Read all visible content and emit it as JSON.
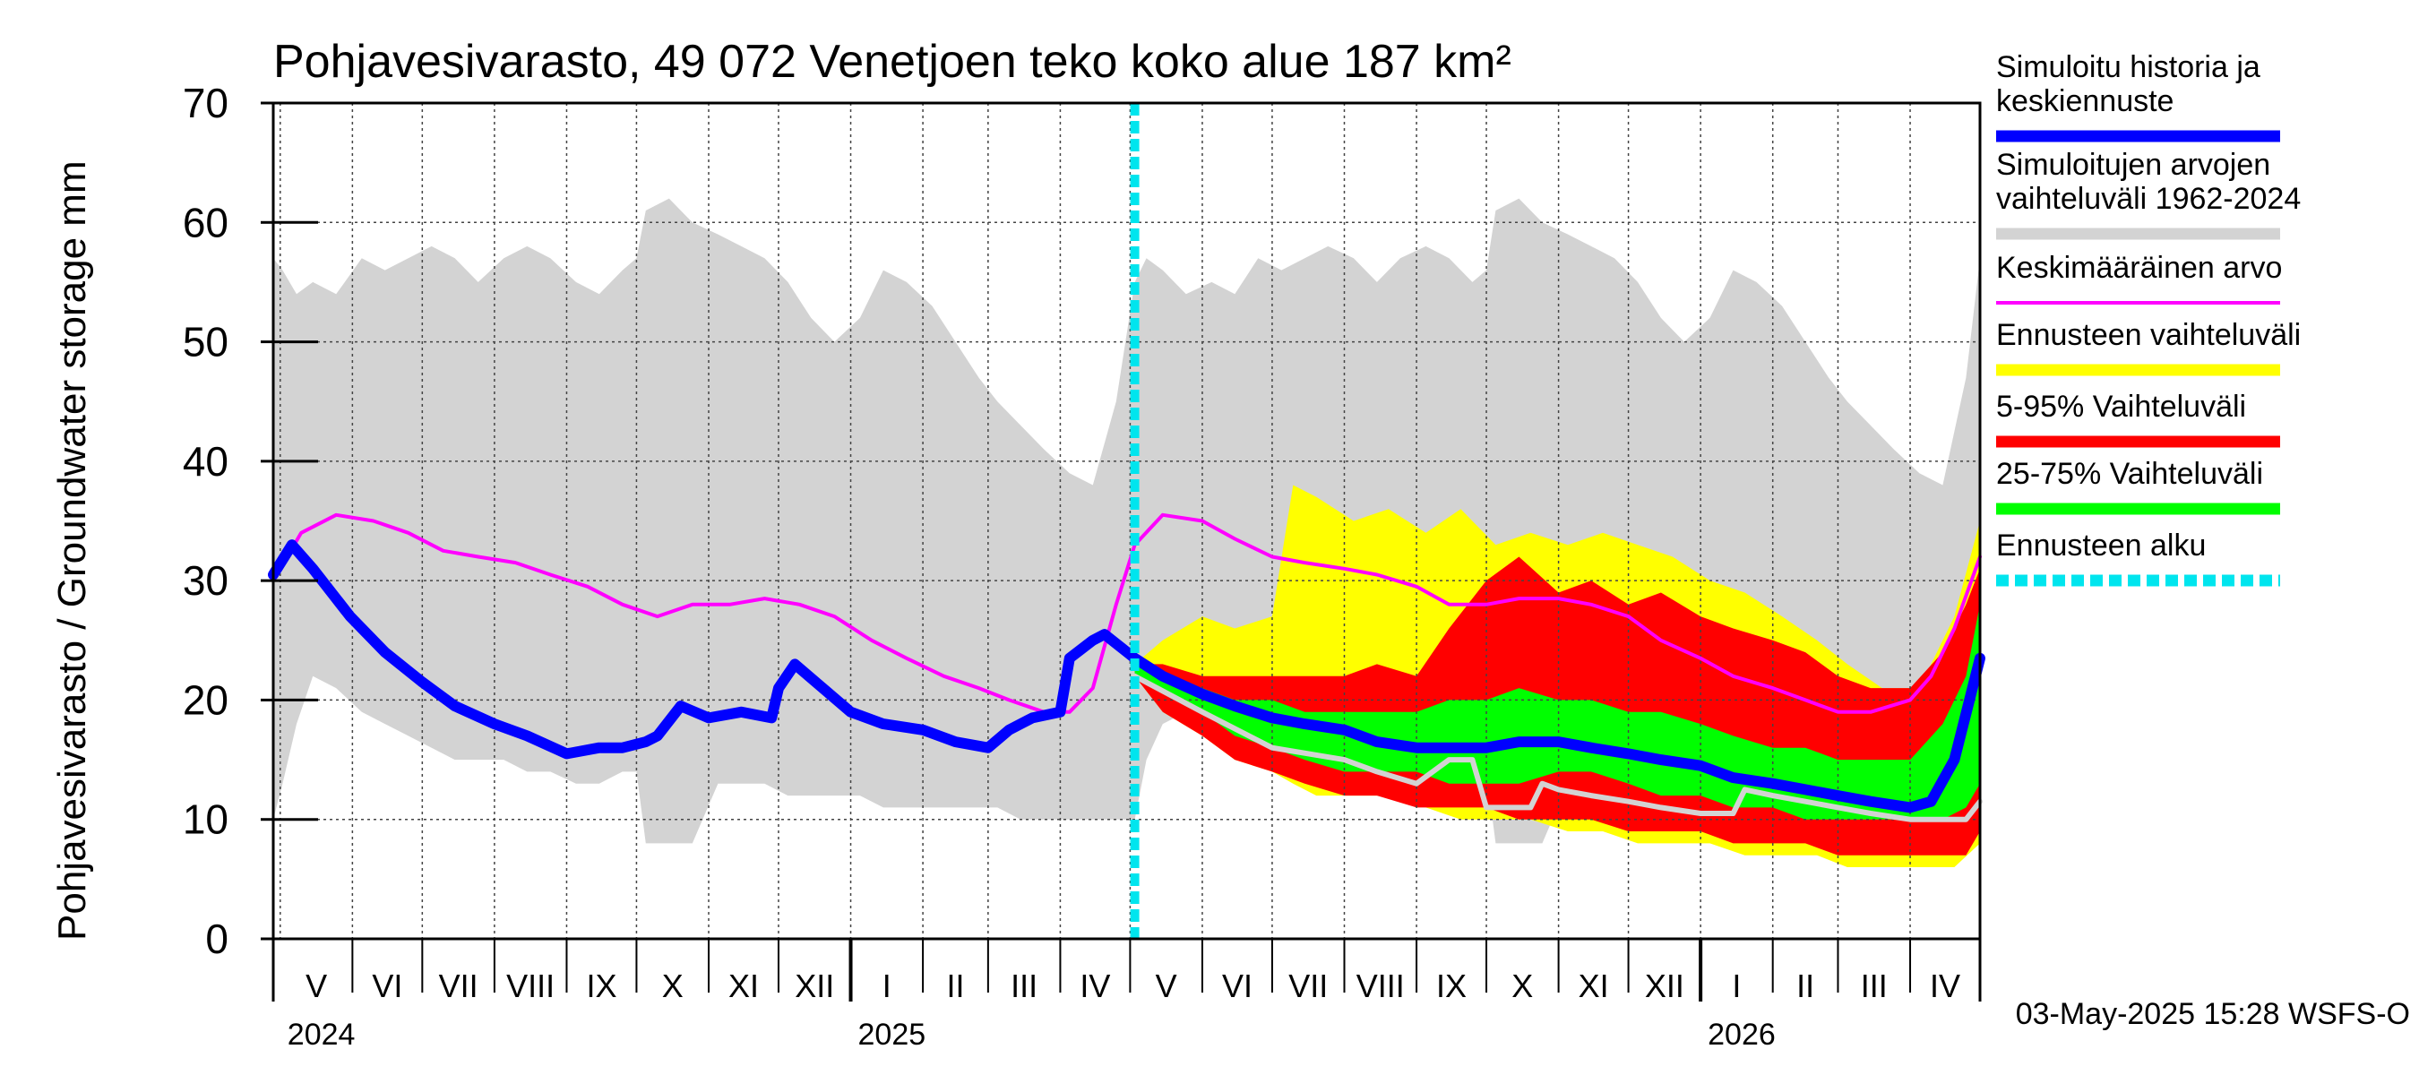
{
  "chart_data": {
    "type": "area",
    "title": "Pohjavesivarasto, 49 072 Venetjoen teko koko alue 187 km²",
    "ylabel": "Pohjavesivarasto / Groundwater storage   mm",
    "ylim": [
      0,
      70
    ],
    "yticks": [
      "0",
      "10",
      "20",
      "30",
      "40",
      "50",
      "60",
      "70"
    ],
    "xlim": [
      "2024-04-28",
      "2026-05-01"
    ],
    "grid": true,
    "legend_position": "right",
    "months": [
      {
        "label": "V",
        "start": "2024-05-01",
        "end": "2024-06-01"
      },
      {
        "label": "VI",
        "start": "2024-06-01",
        "end": "2024-07-01"
      },
      {
        "label": "VII",
        "start": "2024-07-01",
        "end": "2024-08-01"
      },
      {
        "label": "VIII",
        "start": "2024-08-01",
        "end": "2024-09-01"
      },
      {
        "label": "IX",
        "start": "2024-09-01",
        "end": "2024-10-01"
      },
      {
        "label": "X",
        "start": "2024-10-01",
        "end": "2024-11-01"
      },
      {
        "label": "XI",
        "start": "2024-11-01",
        "end": "2024-12-01"
      },
      {
        "label": "XII",
        "start": "2024-12-01",
        "end": "2025-01-01"
      },
      {
        "label": "I",
        "start": "2025-01-01",
        "end": "2025-02-01"
      },
      {
        "label": "II",
        "start": "2025-02-01",
        "end": "2025-03-01"
      },
      {
        "label": "III",
        "start": "2025-03-01",
        "end": "2025-04-01"
      },
      {
        "label": "IV",
        "start": "2025-04-01",
        "end": "2025-05-01"
      },
      {
        "label": "V",
        "start": "2025-05-01",
        "end": "2025-06-01"
      },
      {
        "label": "VI",
        "start": "2025-06-01",
        "end": "2025-07-01"
      },
      {
        "label": "VII",
        "start": "2025-07-01",
        "end": "2025-08-01"
      },
      {
        "label": "VIII",
        "start": "2025-08-01",
        "end": "2025-09-01"
      },
      {
        "label": "IX",
        "start": "2025-09-01",
        "end": "2025-10-01"
      },
      {
        "label": "X",
        "start": "2025-10-01",
        "end": "2025-11-01"
      },
      {
        "label": "XI",
        "start": "2025-11-01",
        "end": "2025-12-01"
      },
      {
        "label": "XII",
        "start": "2025-12-01",
        "end": "2026-01-01"
      },
      {
        "label": "I",
        "start": "2026-01-01",
        "end": "2026-02-01"
      },
      {
        "label": "II",
        "start": "2026-02-01",
        "end": "2026-03-01"
      },
      {
        "label": "III",
        "start": "2026-03-01",
        "end": "2026-04-01"
      },
      {
        "label": "IV",
        "start": "2026-04-01",
        "end": "2026-05-01"
      }
    ],
    "years": [
      {
        "label": "2024",
        "date": "2024-05-01"
      },
      {
        "label": "2025",
        "date": "2025-01-01"
      },
      {
        "label": "2026",
        "date": "2026-01-01"
      }
    ],
    "forecast_start": "2025-05-03",
    "series": [
      {
        "name": "Simuloitujen arvojen vaihteluväli 1962-2024",
        "kind": "band",
        "color": "#d3d3d3",
        "dates": [
          "2024-04-28",
          "2024-05-02",
          "2024-05-08",
          "2024-05-15",
          "2024-05-25",
          "2024-06-05",
          "2024-06-15",
          "2024-06-25",
          "2024-07-05",
          "2024-07-15",
          "2024-07-25",
          "2024-08-05",
          "2024-08-15",
          "2024-08-25",
          "2024-09-05",
          "2024-09-15",
          "2024-09-25",
          "2024-10-01",
          "2024-10-05",
          "2024-10-15",
          "2024-10-25",
          "2024-11-05",
          "2024-11-15",
          "2024-11-25",
          "2024-12-05",
          "2024-12-15",
          "2024-12-25",
          "2025-01-05",
          "2025-01-15",
          "2025-01-25",
          "2025-02-05",
          "2025-02-15",
          "2025-02-25",
          "2025-03-05",
          "2025-03-15",
          "2025-03-25",
          "2025-04-05",
          "2025-04-15",
          "2025-04-25",
          "2025-05-03",
          "2025-05-08",
          "2025-05-15",
          "2025-05-25",
          "2025-06-05",
          "2025-06-15",
          "2025-06-25",
          "2025-07-05",
          "2025-07-15",
          "2025-07-25",
          "2025-08-05",
          "2025-08-15",
          "2025-08-25",
          "2025-09-05",
          "2025-09-15",
          "2025-09-25",
          "2025-10-01",
          "2025-10-05",
          "2025-10-15",
          "2025-10-25",
          "2025-11-05",
          "2025-11-15",
          "2025-11-25",
          "2025-12-05",
          "2025-12-15",
          "2025-12-25",
          "2026-01-05",
          "2026-01-15",
          "2026-01-25",
          "2026-02-05",
          "2026-02-15",
          "2026-02-25",
          "2026-03-05",
          "2026-03-15",
          "2026-03-25",
          "2026-04-05",
          "2026-04-15",
          "2026-04-25",
          "2026-05-01"
        ],
        "upper": [
          57,
          56,
          54,
          55,
          54,
          57,
          56,
          57,
          58,
          57,
          55,
          57,
          58,
          57,
          55,
          54,
          56,
          57,
          61,
          62,
          60,
          59,
          58,
          57,
          55,
          52,
          50,
          52,
          56,
          55,
          53,
          50,
          47,
          45,
          43,
          41,
          39,
          38,
          45,
          55,
          57,
          56,
          54,
          55,
          54,
          57,
          56,
          57,
          58,
          57,
          55,
          57,
          58,
          57,
          55,
          56,
          61,
          62,
          60,
          59,
          58,
          57,
          55,
          52,
          50,
          52,
          56,
          55,
          53,
          50,
          47,
          45,
          43,
          41,
          39,
          38,
          47,
          57
        ],
        "lower": [
          10,
          13,
          18,
          22,
          21,
          19,
          18,
          17,
          16,
          15,
          15,
          15,
          14,
          14,
          13,
          13,
          14,
          14,
          8,
          8,
          8,
          13,
          13,
          13,
          12,
          12,
          12,
          12,
          11,
          11,
          11,
          11,
          11,
          11,
          10,
          10,
          10,
          10,
          10,
          10,
          15,
          18,
          19,
          19,
          18,
          17,
          16,
          15,
          15,
          15,
          14,
          14,
          13,
          13,
          14,
          14,
          8,
          8,
          8,
          13,
          13,
          13,
          12,
          12,
          12,
          12,
          11,
          11,
          11,
          11,
          11,
          11,
          10,
          10,
          10,
          10,
          10,
          10
        ]
      },
      {
        "name": "Ennusteen vaihteluväli",
        "kind": "band",
        "color": "#ffff00",
        "dates": [
          "2025-05-03",
          "2025-05-15",
          "2025-06-01",
          "2025-06-15",
          "2025-07-01",
          "2025-07-10",
          "2025-07-20",
          "2025-08-05",
          "2025-08-20",
          "2025-09-05",
          "2025-09-20",
          "2025-10-05",
          "2025-10-20",
          "2025-11-05",
          "2025-11-20",
          "2025-12-05",
          "2025-12-20",
          "2026-01-05",
          "2026-01-20",
          "2026-02-05",
          "2026-02-20",
          "2026-03-05",
          "2026-03-20",
          "2026-04-05",
          "2026-04-20",
          "2026-05-01"
        ],
        "upper": [
          23,
          25,
          27,
          26,
          27,
          38,
          37,
          35,
          36,
          34,
          36,
          33,
          34,
          33,
          34,
          33,
          32,
          30,
          29,
          27,
          25,
          23,
          21,
          21,
          27,
          35
        ],
        "lower": [
          22,
          19,
          17,
          15,
          14,
          13,
          12,
          12,
          12,
          11,
          10,
          10,
          10,
          9,
          9,
          8,
          8,
          8,
          7,
          7,
          7,
          6,
          6,
          6,
          6,
          8
        ]
      },
      {
        "name": "5-95% Vaihteluväli",
        "kind": "band",
        "color": "#ff0000",
        "dates": [
          "2025-05-03",
          "2025-05-15",
          "2025-06-01",
          "2025-06-15",
          "2025-07-01",
          "2025-07-15",
          "2025-08-01",
          "2025-08-15",
          "2025-09-01",
          "2025-09-15",
          "2025-10-01",
          "2025-10-15",
          "2025-11-01",
          "2025-11-15",
          "2025-12-01",
          "2025-12-15",
          "2026-01-01",
          "2026-01-15",
          "2026-02-01",
          "2026-02-15",
          "2026-03-01",
          "2026-03-15",
          "2026-04-01",
          "2026-04-15",
          "2026-04-25",
          "2026-05-01"
        ],
        "upper": [
          23,
          23,
          22,
          22,
          22,
          22,
          22,
          23,
          22,
          26,
          30,
          32,
          29,
          30,
          28,
          29,
          27,
          26,
          25,
          24,
          22,
          21,
          21,
          24,
          28,
          31
        ],
        "lower": [
          22,
          19,
          17,
          15,
          14,
          13,
          12,
          12,
          11,
          11,
          11,
          10,
          10,
          10,
          9,
          9,
          9,
          8,
          8,
          8,
          7,
          7,
          7,
          7,
          7,
          9
        ]
      },
      {
        "name": "25-75% Vaihteluväli",
        "kind": "band",
        "color": "#00ff00",
        "dates": [
          "2025-05-03",
          "2025-05-15",
          "2025-06-01",
          "2025-06-15",
          "2025-07-01",
          "2025-07-15",
          "2025-08-01",
          "2025-08-15",
          "2025-09-01",
          "2025-09-15",
          "2025-10-01",
          "2025-10-15",
          "2025-11-01",
          "2025-11-15",
          "2025-12-01",
          "2025-12-15",
          "2026-01-01",
          "2026-01-15",
          "2026-02-01",
          "2026-02-15",
          "2026-03-01",
          "2026-03-15",
          "2026-04-01",
          "2026-04-15",
          "2026-04-25",
          "2026-05-01"
        ],
        "upper": [
          23,
          22,
          21,
          20,
          20,
          19,
          19,
          19,
          19,
          20,
          20,
          21,
          20,
          20,
          19,
          19,
          18,
          17,
          16,
          16,
          15,
          15,
          15,
          18,
          22,
          28
        ],
        "lower": [
          22,
          21,
          19,
          17,
          16,
          15,
          14,
          14,
          14,
          13,
          13,
          13,
          14,
          14,
          13,
          12,
          12,
          11,
          11,
          10,
          10,
          10,
          10,
          10,
          11,
          13
        ]
      },
      {
        "name": "Keskimääräinen arvo",
        "kind": "line",
        "color": "#ff00ff",
        "dates": [
          "2024-04-28",
          "2024-05-10",
          "2024-05-25",
          "2024-06-10",
          "2024-06-25",
          "2024-07-10",
          "2024-07-25",
          "2024-08-10",
          "2024-08-25",
          "2024-09-10",
          "2024-09-25",
          "2024-10-10",
          "2024-10-25",
          "2024-11-10",
          "2024-11-25",
          "2024-12-10",
          "2024-12-25",
          "2025-01-10",
          "2025-01-25",
          "2025-02-10",
          "2025-02-25",
          "2025-03-10",
          "2025-03-25",
          "2025-04-05",
          "2025-04-15",
          "2025-04-25",
          "2025-05-03",
          "2025-05-15",
          "2025-06-01",
          "2025-06-15",
          "2025-07-01",
          "2025-07-15",
          "2025-08-01",
          "2025-08-15",
          "2025-09-01",
          "2025-09-15",
          "2025-10-01",
          "2025-10-15",
          "2025-11-01",
          "2025-11-15",
          "2025-12-01",
          "2025-12-15",
          "2026-01-01",
          "2026-01-15",
          "2026-02-01",
          "2026-02-15",
          "2026-03-01",
          "2026-03-15",
          "2026-04-01",
          "2026-04-10",
          "2026-04-20",
          "2026-05-01"
        ],
        "values": [
          30,
          34,
          35.5,
          35,
          34,
          32.5,
          32,
          31.5,
          30.5,
          29.5,
          28,
          27,
          28,
          28,
          28.5,
          28,
          27,
          25,
          23.5,
          22,
          21,
          20,
          19,
          19,
          21,
          28,
          33,
          35.5,
          35,
          33.5,
          32,
          31.5,
          31,
          30.5,
          29.5,
          28,
          28,
          28.5,
          28.5,
          28,
          27,
          25,
          23.5,
          22,
          21,
          20,
          19,
          19,
          20,
          22,
          26,
          32
        ]
      },
      {
        "name": "Simuloitu historia ja keskiennuste",
        "kind": "line",
        "color": "#0000ff",
        "dates": [
          "2024-04-28",
          "2024-05-06",
          "2024-05-15",
          "2024-05-31",
          "2024-06-15",
          "2024-07-01",
          "2024-07-15",
          "2024-08-01",
          "2024-08-15",
          "2024-09-01",
          "2024-09-15",
          "2024-09-25",
          "2024-10-05",
          "2024-10-10",
          "2024-10-20",
          "2024-11-01",
          "2024-11-15",
          "2024-11-28",
          "2024-12-01",
          "2024-12-08",
          "2024-12-20",
          "2025-01-01",
          "2025-01-15",
          "2025-02-01",
          "2025-02-15",
          "2025-03-01",
          "2025-03-10",
          "2025-03-20",
          "2025-04-01",
          "2025-04-05",
          "2025-04-15",
          "2025-04-20",
          "2025-05-03",
          "2025-05-15",
          "2025-06-01",
          "2025-06-15",
          "2025-07-01",
          "2025-07-15",
          "2025-08-01",
          "2025-08-15",
          "2025-09-01",
          "2025-09-15",
          "2025-10-01",
          "2025-10-15",
          "2025-11-01",
          "2025-11-15",
          "2025-12-01",
          "2025-12-15",
          "2026-01-01",
          "2026-01-15",
          "2026-02-01",
          "2026-02-15",
          "2026-03-01",
          "2026-03-15",
          "2026-04-01",
          "2026-04-10",
          "2026-04-20",
          "2026-05-01"
        ],
        "values": [
          30.5,
          33,
          31,
          27,
          24,
          21.5,
          19.5,
          18,
          17,
          15.5,
          16,
          16,
          16.5,
          17,
          19.5,
          18.5,
          19,
          18.5,
          21,
          23,
          21,
          19,
          18,
          17.5,
          16.5,
          16,
          17.5,
          18.5,
          19,
          23.5,
          25,
          25.5,
          23.5,
          22,
          20.5,
          19.5,
          18.5,
          18,
          17.5,
          16.5,
          16,
          16,
          16,
          16.5,
          16.5,
          16,
          15.5,
          15,
          14.5,
          13.5,
          13,
          12.5,
          12,
          11.5,
          11,
          11.5,
          15,
          23.5
        ]
      },
      {
        "name": "",
        "kind": "line",
        "color": "#d3d3d3",
        "dates": [
          "2025-05-03",
          "2025-06-01",
          "2025-07-01",
          "2025-08-01",
          "2025-08-15",
          "2025-09-01",
          "2025-09-15",
          "2025-09-25",
          "2025-10-01",
          "2025-10-10",
          "2025-10-20",
          "2025-10-25",
          "2025-11-01",
          "2025-11-15",
          "2025-12-01",
          "2025-12-15",
          "2026-01-01",
          "2026-01-15",
          "2026-01-20",
          "2026-02-01",
          "2026-02-15",
          "2026-03-01",
          "2026-03-15",
          "2026-04-01",
          "2026-04-15",
          "2026-04-25",
          "2026-05-01"
        ],
        "values": [
          22,
          19,
          16,
          15,
          14,
          13,
          15,
          15,
          11,
          11,
          11,
          13,
          12.5,
          12,
          11.5,
          11,
          10.5,
          10.5,
          12.5,
          12,
          11.5,
          11,
          10.5,
          10,
          10,
          10,
          11.5
        ]
      }
    ],
    "legend": [
      {
        "label_lines": [
          "Simuloitu historia ja",
          "keskiennuste"
        ],
        "color": "#0000ff",
        "style": "solid",
        "weight": "thick"
      },
      {
        "label_lines": [
          "Simuloitujen arvojen",
          "vaihteluväli 1962-2024"
        ],
        "color": "#d3d3d3",
        "style": "solid",
        "weight": "thick"
      },
      {
        "label_lines": [
          "Keskimääräinen arvo"
        ],
        "color": "#ff00ff",
        "style": "solid",
        "weight": "thin"
      },
      {
        "label_lines": [
          "Ennusteen vaihteluväli"
        ],
        "color": "#ffff00",
        "style": "solid",
        "weight": "thick"
      },
      {
        "label_lines": [
          "5-95% Vaihteluväli"
        ],
        "color": "#ff0000",
        "style": "solid",
        "weight": "thick"
      },
      {
        "label_lines": [
          "25-75% Vaihteluväli"
        ],
        "color": "#00ff00",
        "style": "solid",
        "weight": "thick"
      },
      {
        "label_lines": [
          "Ennusteen alku"
        ],
        "color": "#00e5ee",
        "style": "dashed",
        "weight": "thick"
      }
    ],
    "footer": "03-May-2025 15:28 WSFS-O"
  }
}
